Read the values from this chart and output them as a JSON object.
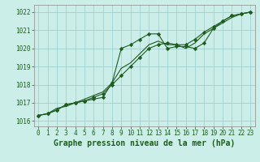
{
  "title": "Graphe pression niveau de la mer (hPa)",
  "background_color": "#cceee8",
  "grid_color": "#99cccc",
  "line_color": "#1e5c1e",
  "hours": [
    0,
    1,
    2,
    3,
    4,
    5,
    6,
    7,
    8,
    9,
    10,
    11,
    12,
    13,
    14,
    15,
    16,
    17,
    18,
    19,
    20,
    21,
    22,
    23
  ],
  "line1": [
    1016.3,
    1016.4,
    1016.6,
    1016.9,
    1017.0,
    1017.1,
    1017.2,
    1017.3,
    1018.1,
    1020.0,
    1020.2,
    1020.5,
    1020.8,
    1020.8,
    1020.0,
    1020.1,
    1020.1,
    1020.0,
    1020.3,
    1021.1,
    1021.5,
    1021.8,
    1021.9,
    1022.0
  ],
  "line2": [
    1016.3,
    1016.4,
    1016.6,
    1016.9,
    1017.0,
    1017.1,
    1017.3,
    1017.5,
    1018.0,
    1018.5,
    1019.0,
    1019.5,
    1020.0,
    1020.2,
    1020.3,
    1020.2,
    1020.2,
    1020.5,
    1020.9,
    1021.2,
    1021.5,
    1021.8,
    1021.9,
    1022.0
  ],
  "line3": [
    1016.3,
    1016.4,
    1016.7,
    1016.8,
    1017.0,
    1017.2,
    1017.4,
    1017.6,
    1018.1,
    1018.9,
    1019.2,
    1019.7,
    1020.2,
    1020.4,
    1020.2,
    1020.2,
    1020.0,
    1020.3,
    1020.8,
    1021.1,
    1021.4,
    1021.7,
    1021.9,
    1022.0
  ],
  "ylim": [
    1015.7,
    1022.4
  ],
  "yticks": [
    1016,
    1017,
    1018,
    1019,
    1020,
    1021,
    1022
  ],
  "xlim": [
    -0.5,
    23.5
  ],
  "xticks": [
    0,
    1,
    2,
    3,
    4,
    5,
    6,
    7,
    8,
    9,
    10,
    11,
    12,
    13,
    14,
    15,
    16,
    17,
    18,
    19,
    20,
    21,
    22,
    23
  ],
  "marker": "D",
  "markersize": 2.2,
  "linewidth": 0.8,
  "title_fontsize": 7,
  "tick_fontsize": 5.5
}
